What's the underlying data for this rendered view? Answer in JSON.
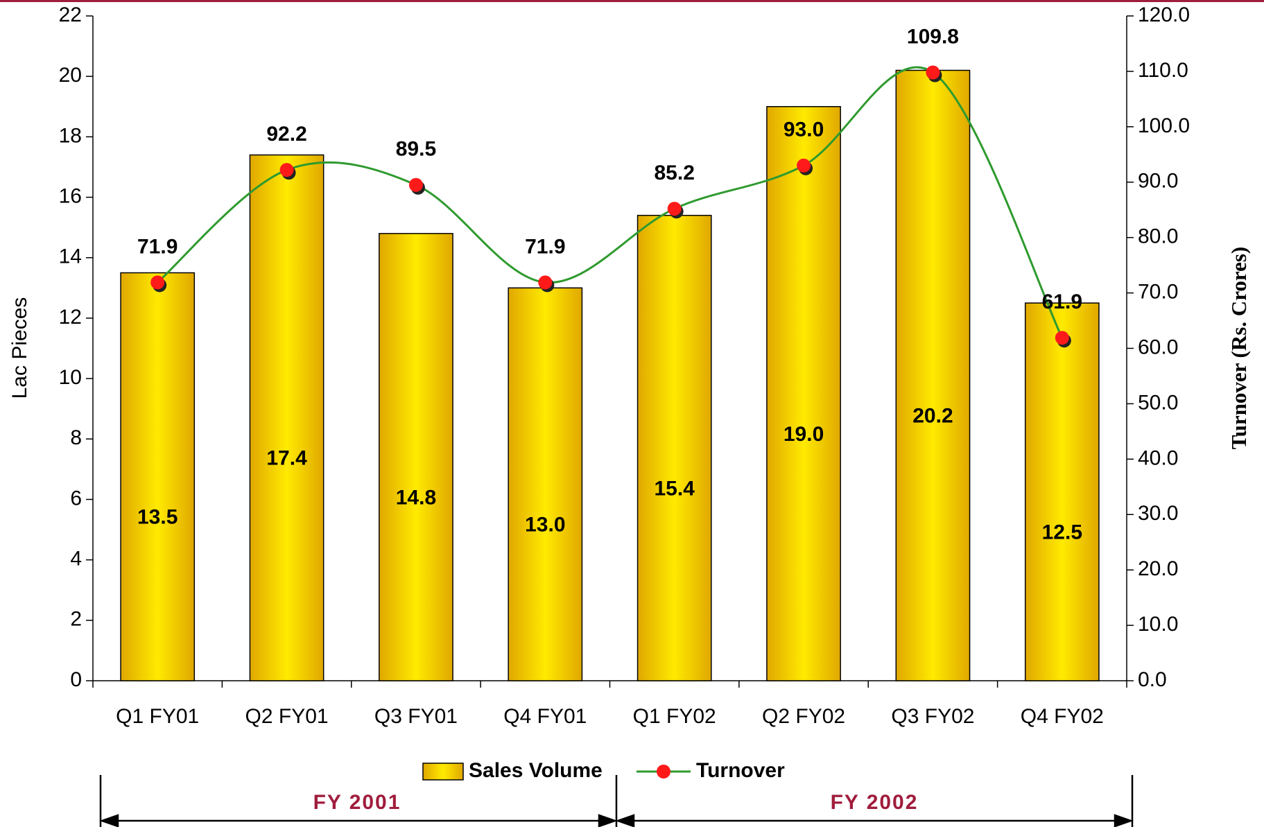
{
  "chart_data": {
    "type": "bar",
    "categories": [
      "Q1 FY01",
      "Q2 FY01",
      "Q3 FY01",
      "Q4 FY01",
      "Q1 FY02",
      "Q2 FY02",
      "Q3 FY02",
      "Q4 FY02"
    ],
    "series": [
      {
        "name": "Sales Volume",
        "type": "bar",
        "color": "#ffea00",
        "edge_color": "#e0a800",
        "values": [
          13.5,
          17.4,
          14.8,
          13,
          15.4,
          19,
          20.2,
          12.5
        ],
        "value_labels": [
          "13.5",
          "17.4",
          "14.8",
          "13.0",
          "15.4",
          "19.0",
          "20.2",
          "12.5"
        ]
      },
      {
        "name": "Turnover",
        "type": "line",
        "axis": "y2",
        "color": "#2e9a2e",
        "marker_color": "#ff1a1a",
        "values": [
          71.9,
          92.2,
          89.5,
          71.9,
          85.2,
          93,
          109.8,
          61.9
        ],
        "value_labels": [
          "71.9",
          "92.2",
          "89.5",
          "71.9",
          "85.2",
          "93.0",
          "109.8",
          "61.9"
        ]
      }
    ],
    "y_label": "Lac Pieces",
    "y2_label": "Turnover (Rs. Crores)",
    "ylim": [
      0,
      22
    ],
    "yticks": [
      0,
      2,
      4,
      6,
      8,
      10,
      12,
      14,
      16,
      18,
      20,
      22
    ],
    "y2lim": [
      0,
      120
    ],
    "y2ticks": [
      {
        "value": 0,
        "label": "0.0"
      },
      {
        "value": 10,
        "label": "10.0"
      },
      {
        "value": 20,
        "label": "20.0"
      },
      {
        "value": 30,
        "label": "30.0"
      },
      {
        "value": 40,
        "label": "40.0"
      },
      {
        "value": 50,
        "label": "50.0"
      },
      {
        "value": 60,
        "label": "60.0"
      },
      {
        "value": 70,
        "label": "70.0"
      },
      {
        "value": 80,
        "label": "80.0"
      },
      {
        "value": 90,
        "label": "90.0"
      },
      {
        "value": 100,
        "label": "100.0"
      },
      {
        "value": 110,
        "label": "110.0"
      },
      {
        "value": 120,
        "label": "120.0"
      }
    ],
    "legend": "bottom",
    "annotations": [
      "FY 2001",
      "FY 2002"
    ]
  }
}
